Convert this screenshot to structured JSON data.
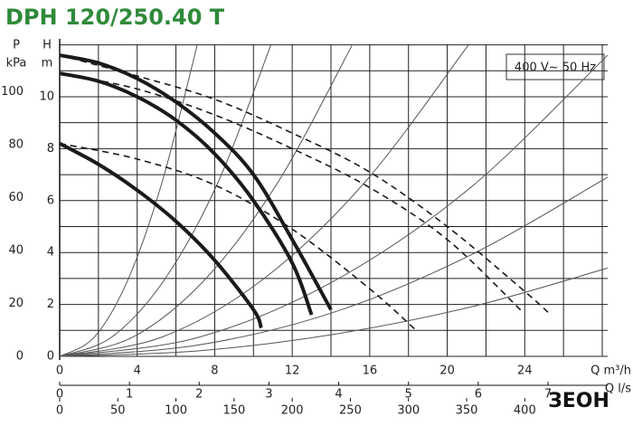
{
  "chart_data": {
    "type": "line",
    "title": "DPH 120/250.40 T",
    "annotation": "400 V~ 50 Hz",
    "y_label": "H",
    "y_unit": "m",
    "y2_label": "P",
    "y2_unit": "kPa",
    "x_label": "Q m³/h",
    "xlim": [
      0,
      28.28
    ],
    "xticks": [
      0,
      4,
      8,
      12,
      16,
      20,
      24
    ],
    "xgrid": [
      0,
      2,
      4,
      6,
      8,
      10,
      12,
      14,
      16,
      18,
      20,
      22,
      24,
      26,
      28
    ],
    "ylim": [
      0,
      12.02
    ],
    "yticks": [
      0,
      2,
      4,
      6,
      8,
      10
    ],
    "ygrid": [
      0,
      1,
      2,
      3,
      4,
      5,
      6,
      7,
      8,
      9,
      10,
      11,
      12
    ],
    "y2lim": [
      0,
      117.9
    ],
    "y2ticks": [
      0,
      20,
      40,
      60,
      80,
      100
    ],
    "grid": true,
    "flow_axes": [
      {
        "label": "Q l/s",
        "lim": [
          0,
          7.856
        ],
        "ticks": [
          0,
          1,
          2,
          3,
          4,
          5,
          6,
          7
        ]
      },
      {
        "lim": [
          0,
          471.3
        ],
        "ticks": [
          0,
          50,
          100,
          150,
          200,
          250,
          300,
          350,
          400
        ]
      }
    ],
    "series": [
      {
        "style": "solid",
        "color": "#1a1a1a",
        "x": [
          0,
          2,
          4,
          6,
          8,
          10,
          12,
          14
        ],
        "values": [
          11.6,
          11.3,
          10.7,
          9.8,
          8.6,
          7,
          4.5,
          1.8
        ]
      },
      {
        "style": "solid",
        "color": "#1a1a1a",
        "x": [
          0,
          2,
          4,
          6,
          8,
          10,
          12,
          13
        ],
        "values": [
          10.9,
          10.6,
          10,
          9.1,
          7.8,
          6,
          3.6,
          1.6
        ]
      },
      {
        "style": "solid",
        "color": "#1a1a1a",
        "x": [
          0,
          2,
          4,
          6,
          8,
          10,
          10.4
        ],
        "values": [
          8.2,
          7.4,
          6.4,
          5.2,
          3.7,
          1.8,
          1.1
        ]
      },
      {
        "style": "dashed",
        "color": "#1a1a1a",
        "x": [
          0,
          4,
          8,
          12,
          16,
          20,
          24,
          25.2
        ],
        "values": [
          11.6,
          10.8,
          9.9,
          8.6,
          7.1,
          5,
          2.5,
          1.7
        ]
      },
      {
        "style": "dashed",
        "color": "#1a1a1a",
        "x": [
          0,
          4,
          8,
          12,
          16,
          20,
          23.9
        ],
        "values": [
          10.9,
          10.3,
          9.3,
          8,
          6.5,
          4.5,
          1.7
        ]
      },
      {
        "style": "dashed",
        "color": "#1a1a1a",
        "x": [
          0,
          4,
          8,
          12,
          16,
          18.4
        ],
        "values": [
          8.2,
          7.6,
          6.6,
          4.9,
          2.6,
          1.0
        ]
      },
      {
        "style": "thin",
        "color": "#555555",
        "x": [
          0,
          1.8,
          3.55,
          5.3,
          7.1
        ],
        "values": [
          0,
          0.75,
          3,
          6.75,
          12
        ]
      },
      {
        "style": "thin",
        "color": "#555555",
        "x": [
          0,
          2.7,
          5.45,
          8.2,
          10.9
        ],
        "values": [
          0,
          0.75,
          3,
          6.75,
          12
        ]
      },
      {
        "style": "thin",
        "color": "#555555",
        "x": [
          0,
          3.8,
          7.55,
          11.3,
          15.1
        ],
        "values": [
          0,
          0.75,
          3,
          6.75,
          12
        ]
      },
      {
        "style": "thin",
        "color": "#555555",
        "x": [
          0,
          5.3,
          10.55,
          15.8,
          21.1
        ],
        "values": [
          0,
          0.75,
          3,
          6.75,
          12
        ]
      },
      {
        "style": "thin",
        "color": "#555555",
        "x": [
          0,
          7.1,
          14.15,
          21.2,
          28.28
        ],
        "values": [
          0,
          0.72,
          2.9,
          6.5,
          11.6
        ]
      },
      {
        "style": "thin",
        "color": "#555555",
        "x": [
          0,
          7.1,
          14.15,
          21.2,
          28.28
        ],
        "values": [
          0,
          0.43,
          1.7,
          3.9,
          6.9
        ]
      },
      {
        "style": "thin",
        "color": "#555555",
        "x": [
          0,
          7.1,
          14.15,
          21.2,
          28.28
        ],
        "values": [
          0,
          0.21,
          0.85,
          1.9,
          3.4
        ]
      }
    ],
    "logo": "ЗЕОН"
  }
}
